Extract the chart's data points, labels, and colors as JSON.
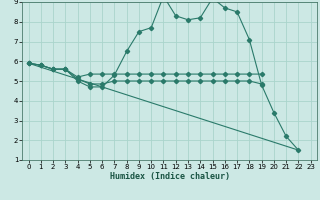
{
  "title": "",
  "xlabel": "Humidex (Indice chaleur)",
  "background_color": "#cce8e4",
  "grid_color": "#aad4cc",
  "line_color": "#2a7a6a",
  "xlim": [
    -0.5,
    23.5
  ],
  "ylim": [
    1,
    9
  ],
  "yticks": [
    1,
    2,
    3,
    4,
    5,
    6,
    7,
    8,
    9
  ],
  "xticks": [
    0,
    1,
    2,
    3,
    4,
    5,
    6,
    7,
    8,
    9,
    10,
    11,
    12,
    13,
    14,
    15,
    16,
    17,
    18,
    19,
    20,
    21,
    22,
    23
  ],
  "line1_x": [
    0,
    1,
    2,
    3,
    4,
    5,
    6,
    7,
    8,
    9,
    10,
    11,
    12,
    13,
    14,
    15,
    16,
    17,
    18,
    19,
    20,
    21,
    22
  ],
  "line1_y": [
    5.9,
    5.8,
    5.6,
    5.6,
    5.0,
    4.7,
    4.7,
    5.3,
    6.5,
    7.5,
    7.7,
    9.3,
    8.3,
    8.1,
    8.2,
    9.2,
    8.7,
    8.5,
    7.1,
    4.8,
    3.4,
    2.2,
    1.5
  ],
  "line2_x": [
    0,
    1,
    2,
    3,
    4,
    5,
    6,
    7,
    8,
    9,
    10,
    11,
    12,
    13,
    14,
    15,
    16,
    17,
    18,
    19
  ],
  "line2_y": [
    5.9,
    5.8,
    5.6,
    5.6,
    5.2,
    5.35,
    5.35,
    5.35,
    5.35,
    5.35,
    5.35,
    5.35,
    5.35,
    5.35,
    5.35,
    5.35,
    5.35,
    5.35,
    5.35,
    5.35
  ],
  "line3_x": [
    0,
    1,
    2,
    3,
    4,
    5,
    6,
    7,
    8,
    9,
    10,
    11,
    12,
    13,
    14,
    15,
    16,
    17,
    18,
    19
  ],
  "line3_y": [
    5.9,
    5.8,
    5.6,
    5.6,
    5.1,
    4.85,
    4.85,
    5.0,
    5.0,
    5.0,
    5.0,
    5.0,
    5.0,
    5.0,
    5.0,
    5.0,
    5.0,
    5.0,
    5.0,
    4.85
  ],
  "line4_x": [
    0,
    22
  ],
  "line4_y": [
    5.9,
    1.5
  ]
}
